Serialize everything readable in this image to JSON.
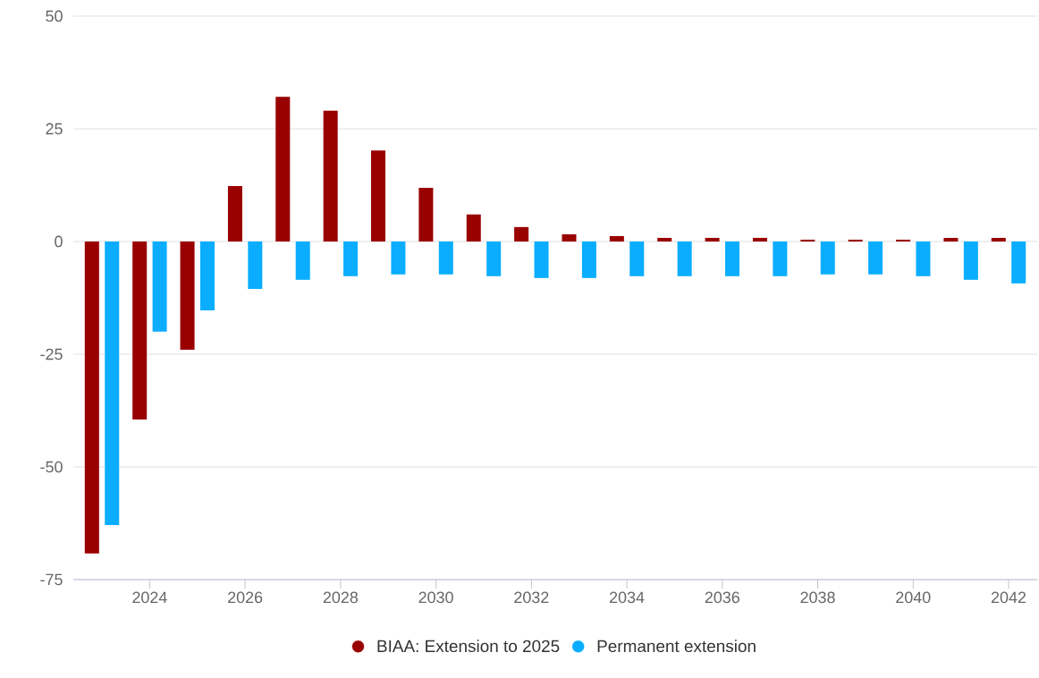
{
  "chart_data": {
    "type": "bar",
    "x": [
      2023,
      2024,
      2025,
      2026,
      2027,
      2028,
      2029,
      2030,
      2031,
      2032,
      2033,
      2034,
      2035,
      2036,
      2037,
      2038,
      2039,
      2040,
      2041,
      2042
    ],
    "series": [
      {
        "name": "BIAA: Extension to 2025",
        "color": "#990000",
        "values": [
          -69.2,
          -39.5,
          -24.0,
          12.3,
          32.1,
          29.0,
          20.2,
          11.9,
          6.0,
          3.2,
          1.6,
          1.2,
          0.8,
          0.8,
          0.8,
          0.4,
          0.4,
          0.4,
          0.8,
          0.8
        ]
      },
      {
        "name": "Permanent extension",
        "color": "#0aadff",
        "values": [
          -62.9,
          -20.0,
          -15.3,
          -10.5,
          -8.5,
          -7.7,
          -7.3,
          -7.3,
          -7.7,
          -8.1,
          -8.1,
          -7.7,
          -7.7,
          -7.7,
          -7.7,
          -7.3,
          -7.3,
          -7.7,
          -8.5,
          -9.3
        ]
      }
    ],
    "xlim": [
      2022.4,
      2042.6
    ],
    "xticks": [
      2024,
      2026,
      2028,
      2030,
      2032,
      2034,
      2036,
      2038,
      2040,
      2042
    ],
    "ylim": [
      -75,
      50
    ],
    "yticks": [
      -75,
      -50,
      -25,
      0,
      25,
      50
    ],
    "grid": "y",
    "legend": "bottom",
    "marker": "circle"
  }
}
